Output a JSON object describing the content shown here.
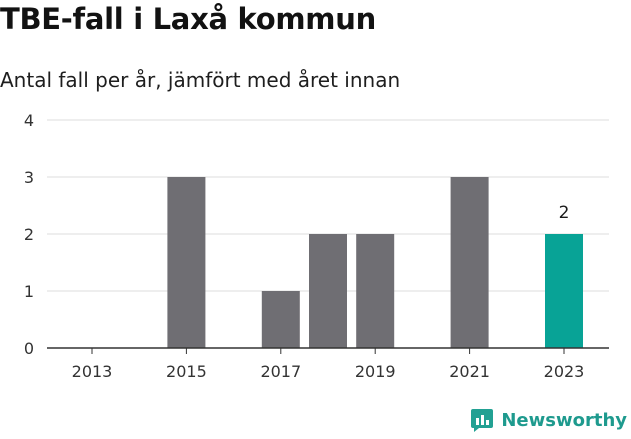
{
  "header": {
    "title": "TBE-fall i Laxå kommun",
    "subtitle": "Antal fall per år, jämfört med året innan"
  },
  "brand": {
    "name": "Newsworthy",
    "icon": "newsworthy-logo-icon",
    "color": "#22a193"
  },
  "colors": {
    "bar": "#6f6e73",
    "highlight": "#08a396",
    "grid": "#dddddd",
    "axis": "#333333"
  },
  "chart_data": {
    "type": "bar",
    "categories": [
      "2013",
      "2014",
      "2015",
      "2016",
      "2017",
      "2018",
      "2019",
      "2020",
      "2021",
      "2022",
      "2023"
    ],
    "values": [
      0,
      0,
      3,
      0,
      1,
      2,
      2,
      0,
      3,
      0,
      2
    ],
    "x_tick_labels": [
      "2013",
      "2015",
      "2017",
      "2019",
      "2021",
      "2023"
    ],
    "ylim": [
      0,
      4
    ],
    "y_ticks": [
      0,
      1,
      2,
      3,
      4
    ],
    "highlight": {
      "category": "2023",
      "label": "2"
    },
    "grid": true,
    "title": "TBE-fall i Laxå kommun",
    "subtitle": "Antal fall per år, jämfört med året innan",
    "xlabel": "",
    "ylabel": ""
  }
}
